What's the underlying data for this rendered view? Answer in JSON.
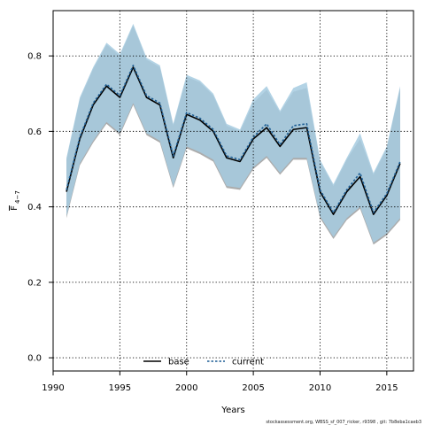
{
  "chart_data": {
    "type": "line",
    "xlabel": "Years",
    "ylabel_main": "F",
    "ylabel_sub": "4−7",
    "xlim": [
      1990,
      2017
    ],
    "ylim": [
      -0.035,
      0.92
    ],
    "x_ticks": [
      1990,
      1995,
      2000,
      2005,
      2010,
      2015
    ],
    "y_ticks": [
      0.0,
      0.2,
      0.4,
      0.6,
      0.8
    ],
    "y_tick_labels": [
      "0.0",
      "0.2",
      "0.4",
      "0.6",
      "0.8"
    ],
    "grid": true,
    "legend_position": "bottom-center",
    "colors": {
      "base_line": "#000000",
      "current_line": "#1f5f95",
      "base_band": "#9e9e9e",
      "current_band": "#a6cbe0"
    },
    "x": [
      1991,
      1992,
      1993,
      1994,
      1995,
      1996,
      1997,
      1998,
      1999,
      2000,
      2001,
      2002,
      2003,
      2004,
      2005,
      2006,
      2007,
      2008,
      2009,
      2010,
      2011,
      2012,
      2013,
      2014,
      2015,
      2016
    ],
    "series": [
      {
        "name": "base",
        "style": "solid",
        "values": [
          0.44,
          0.58,
          0.67,
          0.72,
          0.69,
          0.77,
          0.69,
          0.67,
          0.53,
          0.645,
          0.63,
          0.6,
          0.53,
          0.52,
          0.58,
          0.61,
          0.56,
          0.605,
          0.61,
          0.44,
          0.38,
          0.44,
          0.48,
          0.38,
          0.43,
          0.515
        ],
        "lower": [
          0.37,
          0.51,
          0.57,
          0.62,
          0.59,
          0.67,
          0.59,
          0.57,
          0.45,
          0.555,
          0.54,
          0.52,
          0.45,
          0.445,
          0.5,
          0.53,
          0.485,
          0.525,
          0.525,
          0.37,
          0.315,
          0.365,
          0.395,
          0.3,
          0.325,
          0.365
        ],
        "upper": [
          0.525,
          0.685,
          0.765,
          0.83,
          0.8,
          0.88,
          0.79,
          0.77,
          0.615,
          0.745,
          0.73,
          0.695,
          0.615,
          0.6,
          0.675,
          0.71,
          0.65,
          0.705,
          0.715,
          0.52,
          0.455,
          0.525,
          0.58,
          0.485,
          0.555,
          0.715
        ]
      },
      {
        "name": "current",
        "style": "dashed",
        "values": [
          0.445,
          0.585,
          0.675,
          0.725,
          0.695,
          0.775,
          0.695,
          0.675,
          0.535,
          0.65,
          0.635,
          0.605,
          0.535,
          0.525,
          0.585,
          0.62,
          0.565,
          0.615,
          0.62,
          0.445,
          0.385,
          0.445,
          0.49,
          0.385,
          0.435,
          0.52
        ],
        "lower": [
          0.375,
          0.515,
          0.575,
          0.625,
          0.595,
          0.675,
          0.595,
          0.575,
          0.455,
          0.56,
          0.545,
          0.525,
          0.455,
          0.45,
          0.505,
          0.535,
          0.49,
          0.53,
          0.53,
          0.375,
          0.32,
          0.37,
          0.4,
          0.305,
          0.33,
          0.37
        ],
        "upper": [
          0.53,
          0.69,
          0.77,
          0.835,
          0.805,
          0.885,
          0.795,
          0.775,
          0.62,
          0.75,
          0.735,
          0.7,
          0.62,
          0.605,
          0.685,
          0.72,
          0.655,
          0.715,
          0.73,
          0.525,
          0.46,
          0.53,
          0.595,
          0.49,
          0.56,
          0.72
        ]
      }
    ]
  },
  "footer": "stockassessment.org, WBSS_sf_007_ricker, r9398 , git: 7b8eba1caeb3"
}
